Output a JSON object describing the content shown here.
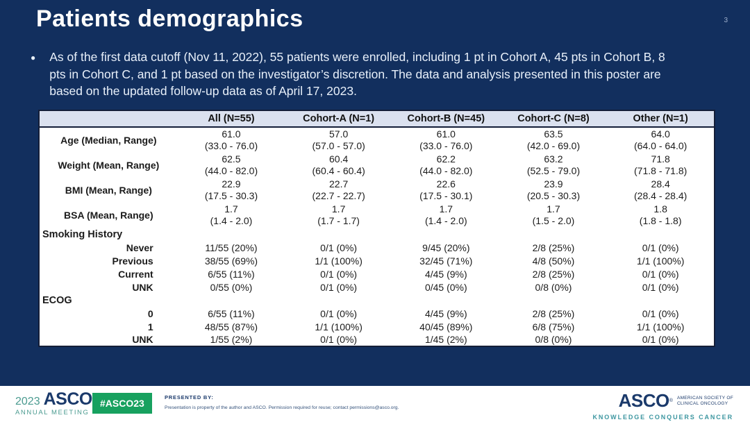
{
  "page": {
    "number": "3"
  },
  "title": "Patients demographics",
  "bullet": {
    "text": "As of the first data cutoff (Nov 11, 2022), 55 patients were enrolled, including 1 pt in Cohort A, 45 pts in Cohort B, 8 pts in Cohort C, and 1 pt based on the investigator’s discretion. The data and analysis presented in this poster are based on the updated follow-up data as of April 17, 2023."
  },
  "table": {
    "columns": [
      "",
      "All (N=55)",
      "Cohort-A (N=1)",
      "Cohort-B (N=45)",
      "Cohort-C (N=8)",
      "Other (N=1)"
    ],
    "rows": [
      {
        "type": "stat",
        "label": "Age (Median, Range)",
        "values": [
          [
            "61.0",
            "(33.0 - 76.0)"
          ],
          [
            "57.0",
            "(57.0 - 57.0)"
          ],
          [
            "61.0",
            "(33.0 - 76.0)"
          ],
          [
            "63.5",
            "(42.0 - 69.0)"
          ],
          [
            "64.0",
            "(64.0 - 64.0)"
          ]
        ]
      },
      {
        "type": "stat",
        "label": "Weight (Mean, Range)",
        "values": [
          [
            "62.5",
            "(44.0 - 82.0)"
          ],
          [
            "60.4",
            "(60.4 - 60.4)"
          ],
          [
            "62.2",
            "(44.0 - 82.0)"
          ],
          [
            "63.2",
            "(52.5 - 79.0)"
          ],
          [
            "71.8",
            "(71.8 - 71.8)"
          ]
        ]
      },
      {
        "type": "stat",
        "label": "BMI (Mean, Range)",
        "values": [
          [
            "22.9",
            "(17.5 - 30.3)"
          ],
          [
            "22.7",
            "(22.7 - 22.7)"
          ],
          [
            "22.6",
            "(17.5 - 30.1)"
          ],
          [
            "23.9",
            "(20.5 - 30.3)"
          ],
          [
            "28.4",
            "(28.4 - 28.4)"
          ]
        ]
      },
      {
        "type": "stat",
        "label": "BSA (Mean, Range)",
        "values": [
          [
            "1.7",
            "(1.4 - 2.0)"
          ],
          [
            "1.7",
            "(1.7 - 1.7)"
          ],
          [
            "1.7",
            "(1.4 - 2.0)"
          ],
          [
            "1.7",
            "(1.5 - 2.0)"
          ],
          [
            "1.8",
            "(1.8 - 1.8)"
          ]
        ]
      },
      {
        "type": "section",
        "label": "Smoking History"
      },
      {
        "type": "sub",
        "label": "Never",
        "values": [
          "11/55 (20%)",
          "0/1 (0%)",
          "9/45 (20%)",
          "2/8 (25%)",
          "0/1 (0%)"
        ]
      },
      {
        "type": "sub",
        "label": "Previous",
        "values": [
          "38/55 (69%)",
          "1/1 (100%)",
          "32/45 (71%)",
          "4/8 (50%)",
          "1/1 (100%)"
        ]
      },
      {
        "type": "sub",
        "label": "Current",
        "values": [
          "6/55 (11%)",
          "0/1 (0%)",
          "4/45 (9%)",
          "2/8 (25%)",
          "0/1 (0%)"
        ]
      },
      {
        "type": "sub",
        "label": "UNK",
        "values": [
          "0/55 (0%)",
          "0/1 (0%)",
          "0/45 (0%)",
          "0/8 (0%)",
          "0/1 (0%)"
        ]
      },
      {
        "type": "section",
        "label": "ECOG"
      },
      {
        "type": "sub",
        "label": "0",
        "values": [
          "6/55 (11%)",
          "0/1 (0%)",
          "4/45 (9%)",
          "2/8 (25%)",
          "0/1 (0%)"
        ]
      },
      {
        "type": "sub",
        "label": "1",
        "values": [
          "48/55 (87%)",
          "1/1 (100%)",
          "40/45 (89%)",
          "6/8 (75%)",
          "1/1 (100%)"
        ]
      },
      {
        "type": "sub",
        "label": "UNK",
        "values": [
          "1/55 (2%)",
          "0/1 (0%)",
          "1/45 (2%)",
          "0/8 (0%)",
          "0/1 (0%)"
        ]
      }
    ]
  },
  "footer": {
    "meeting_year": "2023",
    "meeting_logo_text": "ASCO",
    "reg_mark": "®",
    "meeting_sub": "ANNUAL MEETING",
    "hashtag": "#ASCO23",
    "presented_by_label": "PRESENTED BY:",
    "permission_text": "Presentation is property of the author and ASCO. Permission required for reuse; contact permissions@asco.org.",
    "asco_logo": "ASCO",
    "asco_name_line1": "AMERICAN SOCIETY OF",
    "asco_name_line2": "CLINICAL ONCOLOGY",
    "tagline": "KNOWLEDGE CONQUERS CANCER"
  },
  "colors": {
    "background_navy": "#122f5e",
    "header_row": "#dbe1ef",
    "table_border": "#141e38",
    "accent_teal": "#4b9b90",
    "badge_green": "#17a15f",
    "logo_navy": "#1b3a6b",
    "tagline_teal": "#3c96a0"
  }
}
